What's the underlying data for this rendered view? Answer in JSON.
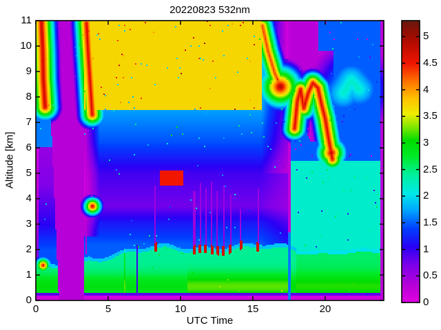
{
  "chart_data": {
    "type": "heatmap",
    "title": "20220823 532nm",
    "xlabel": "UTC Time",
    "ylabel": "Altitude [km]",
    "xlim": [
      0,
      24.05
    ],
    "ylim": [
      0,
      11
    ],
    "x_ticks": [
      0,
      5,
      10,
      15,
      20
    ],
    "x_tick_labels": [
      "0",
      "5",
      "10",
      "15",
      "20"
    ],
    "y_ticks": [
      0,
      1,
      2,
      3,
      4,
      5,
      6,
      7,
      8,
      9,
      10,
      11
    ],
    "y_tick_labels": [
      "0",
      "1",
      "2",
      "3",
      "4",
      "5",
      "6",
      "7",
      "8",
      "9",
      "10",
      "11"
    ],
    "grid": false,
    "legend": null,
    "colorbar": {
      "min": 0,
      "max": 5.3,
      "ticks": [
        0,
        0.5,
        1,
        1.5,
        2,
        2.5,
        3,
        3.5,
        4,
        4.5,
        5
      ],
      "tick_labels": [
        "0",
        "0.5",
        "1",
        "1.5",
        "2",
        "2.5",
        "3",
        "3.5",
        "4",
        "4.5",
        "5"
      ],
      "colormap": [
        [
          0.0,
          "#e200e2"
        ],
        [
          0.35,
          "#b400d8"
        ],
        [
          0.7,
          "#8000ea"
        ],
        [
          1.05,
          "#2a00f5"
        ],
        [
          1.4,
          "#0040ff"
        ],
        [
          1.75,
          "#00a8ff"
        ],
        [
          2.05,
          "#00eaea"
        ],
        [
          2.4,
          "#00f0a0"
        ],
        [
          2.75,
          "#00ea28"
        ],
        [
          3.05,
          "#00dc00"
        ],
        [
          3.25,
          "#66e600"
        ],
        [
          3.55,
          "#eeee00"
        ],
        [
          3.85,
          "#ffc000"
        ],
        [
          4.15,
          "#ff7600"
        ],
        [
          4.5,
          "#f01600"
        ],
        [
          4.85,
          "#bc0c00"
        ],
        [
          5.15,
          "#861006"
        ],
        [
          5.3,
          "#671a12"
        ]
      ]
    },
    "field": {
      "description": "Lidar 532 nm backscatter time-height curtain: green boundary layer below ~2 km with yellow band near 0.5-1 km; data gap (purple) 1.6-3.3 UTC; noisy green/yellow free troposphere 8-11 km during 3.5-15.5 UTC; descending cirrus streaks near 0.5, 3.7 and 16 UTC; wavy cloud band with red cores 7-9 km descending to 5.5 km during 18-20.5 UTC; dim purple night sky after 17.6 UTC; small dark-red cloud tops at ~2 km with attenuation shadows 11-15.5 UTC.",
      "profiles": {
        "day": [
          [
            2.2,
            2.15,
            0.65
          ],
          [
            3.1,
            1.85,
            0.7
          ],
          [
            3.7,
            1.5,
            0.75
          ],
          [
            5.0,
            1.75,
            0.8
          ],
          [
            6.2,
            2.3,
            0.85
          ],
          [
            7.6,
            2.65,
            0.9
          ],
          [
            8.6,
            2.9,
            0.95
          ],
          [
            11,
            2.85,
            0.95
          ]
        ],
        "night_left": [
          [
            2.0,
            2.05,
            0.6
          ],
          [
            3.0,
            1.65,
            0.6
          ],
          [
            4.5,
            1.25,
            0.55
          ],
          [
            6.5,
            1.05,
            0.55
          ],
          [
            11,
            0.9,
            0.55
          ]
        ],
        "night_right": {
          "high_mean": 0.45,
          "high_amp": 0.4,
          "dot_p": 0.07,
          "low_mean0": 1.75,
          "low_slope": 0.1,
          "low_amp": 0.55
        }
      },
      "boundary_layer": {
        "base": 2.85,
        "night_top": 1.42,
        "day_top_start": 1.75,
        "day_top_slope": 0.08,
        "day_top_max": 2.2,
        "evening_top": 2.02,
        "yellow_center": 0.55,
        "yellow_width": 0.5,
        "yellow_amp_night": 0.55,
        "yellow_amp_day": 0.5,
        "yellow_amp_afternoon": 0.8
      },
      "bottom_strip": {
        "top_km": 0.17,
        "value": 0.12
      },
      "blue_line": {
        "top_km": 0.3,
        "value": 1.3
      },
      "gap": {
        "start0": 1.6,
        "slope": 0.078,
        "end": 3.34,
        "value": 0.32
      },
      "wedge": {
        "t0": 17.6,
        "t1": 20.55,
        "b_start": 8.35,
        "b_slope": 1.55,
        "b_min": 6.25,
        "top_switch": 19.5,
        "top_val": 9.8,
        "value": 0.3
      },
      "columns": [
        {
          "t": 3.44,
          "hw": 0.05,
          "a0": 1.8,
          "a1": 11,
          "v": 0.55,
          "solid": false
        },
        {
          "t": 6.97,
          "hw": 0.05,
          "a0": 0.3,
          "a1": 2.2,
          "v": 1.2,
          "solid": false
        },
        {
          "t": 17.49,
          "hw": 0.1,
          "a0": 2.7,
          "a1": 11,
          "v": 0.5,
          "solid": false
        },
        {
          "t": 17.5,
          "hw": 0.09,
          "a0": 0.0,
          "a1": 2.7,
          "v": 1.85,
          "solid": false
        },
        {
          "t": 23.93,
          "hw": 0.14,
          "a0": 0,
          "a1": 11,
          "v": 0.3,
          "solid": true
        }
      ],
      "bl_clouds": [
        {
          "t": 8.25,
          "shadow_top": 4.5
        },
        {
          "t": 10.95,
          "shadow_top": 4.3
        },
        {
          "t": 11.35,
          "shadow_top": 4.6
        },
        {
          "t": 11.75,
          "shadow_top": 4.4
        },
        {
          "t": 12.15,
          "shadow_top": 4.7
        },
        {
          "t": 12.55,
          "shadow_top": 4.3
        },
        {
          "t": 13.0,
          "shadow_top": 4.5
        },
        {
          "t": 13.45,
          "shadow_top": 4.2
        },
        {
          "t": 14.15,
          "shadow_top": 3.6
        },
        {
          "t": 15.35,
          "shadow_top": 4.4
        }
      ],
      "features": [
        {
          "name": "cirrus-streak-1",
          "pts": [
            [
              0.38,
              11.1
            ],
            [
              0.48,
              9.8
            ],
            [
              0.52,
              8.7
            ],
            [
              0.64,
              7.6
            ]
          ],
          "w": 0.34,
          "core": 5.0,
          "drop": 2.5
        },
        {
          "name": "bl-cloud-blob-1",
          "pts": [
            [
              0.5,
              1.38
            ]
          ],
          "w": 0.25,
          "core": 5.0,
          "drop": 3.0
        },
        {
          "name": "cirrus-streak-2",
          "pts": [
            [
              3.5,
              10.9
            ],
            [
              3.62,
              9.7
            ],
            [
              3.76,
              8.5
            ],
            [
              3.9,
              7.3
            ]
          ],
          "w": 0.32,
          "core": 4.9,
          "drop": 2.5
        },
        {
          "name": "mid-cloud-blob",
          "pts": [
            [
              3.92,
              3.7
            ]
          ],
          "w": 0.3,
          "core": 5.1,
          "drop": 3.2
        },
        {
          "name": "cirrus-streak-3",
          "pts": [
            [
              15.66,
              10.8
            ],
            [
              16.05,
              9.8
            ],
            [
              16.5,
              8.95
            ],
            [
              16.85,
              8.5
            ]
          ],
          "w": 0.3,
          "core": 4.6,
          "drop": 2.4
        },
        {
          "name": "cirrus-blob-3",
          "pts": [
            [
              16.9,
              8.4
            ]
          ],
          "w": 0.55,
          "core": 5.2,
          "drop": 2.6
        },
        {
          "name": "evening-cloud-band",
          "pts": [
            [
              17.88,
              6.75
            ],
            [
              18.08,
              7.85
            ],
            [
              18.3,
              8.3
            ],
            [
              18.52,
              7.55
            ],
            [
              18.82,
              8.15
            ],
            [
              19.15,
              8.55
            ],
            [
              19.5,
              8.35
            ],
            [
              19.75,
              7.7
            ],
            [
              20.0,
              7.15
            ],
            [
              20.25,
              6.3
            ],
            [
              20.5,
              5.55
            ]
          ],
          "w": 0.3,
          "core": 4.9,
          "drop": 2.5
        },
        {
          "name": "evening-cloud-end-blob",
          "pts": [
            [
              20.42,
              5.8
            ]
          ],
          "w": 0.4,
          "core": 5.1,
          "drop": 2.6
        },
        {
          "name": "night-cyan-patch",
          "pts": [
            [
              21.25,
              8.15
            ],
            [
              21.8,
              8.65
            ],
            [
              22.35,
              8.3
            ]
          ],
          "w": 0.9,
          "core": 2.45,
          "drop": 1.3
        }
      ],
      "mid_cloud_specks": {
        "t0": 8.6,
        "t1": 10.2,
        "a0": 4.5,
        "a1": 5.1,
        "p": 0.05,
        "value": 4.8
      }
    }
  },
  "figure": {
    "background": "#ffffff",
    "axis_color": "#000000"
  }
}
